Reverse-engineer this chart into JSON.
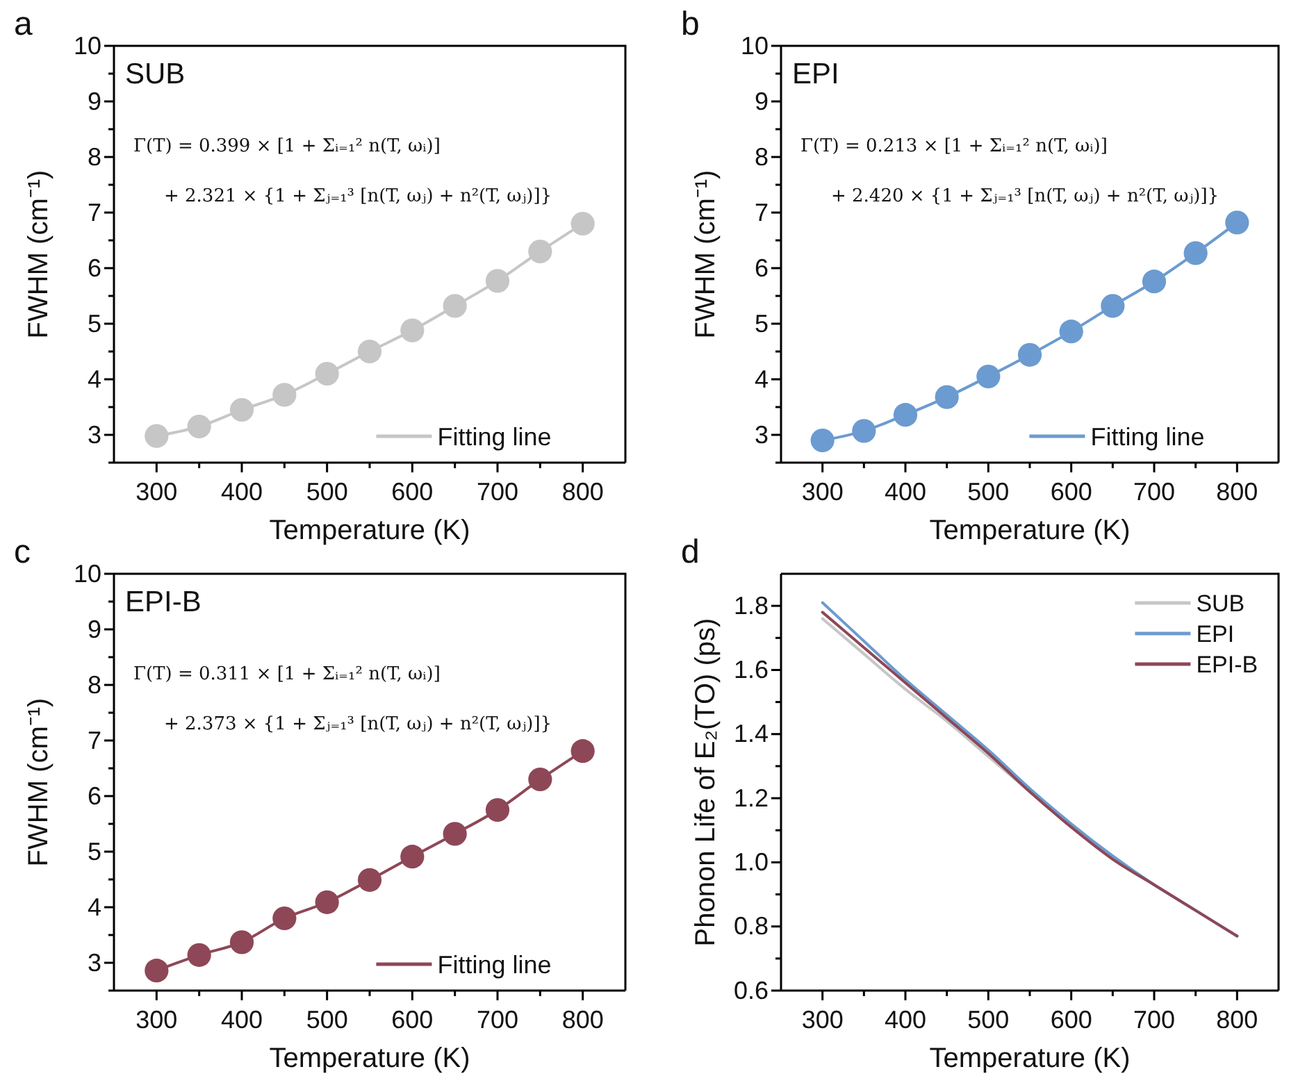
{
  "chart_data": [
    {
      "type": "line",
      "xlabel": "Temperature (K)",
      "ylabel": "FWHM (cm⁻¹)",
      "xlim": [
        250,
        850
      ],
      "ylim": [
        2.5,
        10
      ],
      "xticks": [
        300,
        {
          "value": 350,
          "label": null
        },
        400,
        {
          "value": 450,
          "label": null
        },
        500,
        {
          "value": 550,
          "label": null
        },
        600,
        {
          "value": 650,
          "label": null
        },
        700,
        {
          "value": 750,
          "label": null
        },
        800
      ],
      "yticks": [
        {
          "value": 2.5,
          "label": null
        },
        3,
        {
          "value": 3.5,
          "label": null
        },
        4,
        {
          "value": 4.5,
          "label": null
        },
        5,
        {
          "value": 5.5,
          "label": null
        },
        6,
        {
          "value": 6.5,
          "label": null
        },
        7,
        {
          "value": 7.5,
          "label": null
        },
        8,
        {
          "value": 8.5,
          "label": null
        },
        9,
        {
          "value": 9.5,
          "label": null
        },
        10
      ],
      "x": [
        300,
        350,
        400,
        450,
        500,
        550,
        600,
        650,
        700,
        750,
        800
      ],
      "series": [
        {
          "type": "scatter",
          "color": "#c6c6c6",
          "marker": "circle",
          "values": [
            2.98,
            3.15,
            3.45,
            3.72,
            4.1,
            4.5,
            4.88,
            5.32,
            5.77,
            6.3,
            6.8
          ]
        },
        {
          "type": "line",
          "name": "Fitting line",
          "color": "#c6c6c6",
          "line_style": "solid",
          "values": [
            2.98,
            3.15,
            3.45,
            3.72,
            4.1,
            4.5,
            4.88,
            5.32,
            5.77,
            6.3,
            6.8
          ]
        }
      ],
      "legend": "bottom right",
      "grid": false,
      "annotations": [
        "a",
        "SUB",
        "Γ(T) = 0.399 × [1 + Σᵢ₌₁² n(T, ωᵢ)]",
        "+ 2.321 × {1 + Σⱼ₌₁³ [n(T, ωⱼ) + n²(T, ωⱼ)]}"
      ]
    },
    {
      "type": "line",
      "xlabel": "Temperature (K)",
      "ylabel": "FWHM (cm⁻¹)",
      "xlim": [
        250,
        850
      ],
      "ylim": [
        2.5,
        10
      ],
      "xticks": [
        300,
        {
          "value": 350,
          "label": null
        },
        400,
        {
          "value": 450,
          "label": null
        },
        500,
        {
          "value": 550,
          "label": null
        },
        600,
        {
          "value": 650,
          "label": null
        },
        700,
        {
          "value": 750,
          "label": null
        },
        800
      ],
      "yticks": [
        {
          "value": 2.5,
          "label": null
        },
        3,
        {
          "value": 3.5,
          "label": null
        },
        4,
        {
          "value": 4.5,
          "label": null
        },
        5,
        {
          "value": 5.5,
          "label": null
        },
        6,
        {
          "value": 6.5,
          "label": null
        },
        7,
        {
          "value": 7.5,
          "label": null
        },
        8,
        {
          "value": 8.5,
          "label": null
        },
        9,
        {
          "value": 9.5,
          "label": null
        },
        10
      ],
      "x": [
        300,
        350,
        400,
        450,
        500,
        550,
        600,
        650,
        700,
        750,
        800
      ],
      "series": [
        {
          "type": "scatter",
          "color": "#6b9bd0",
          "marker": "circle",
          "values": [
            2.9,
            3.07,
            3.36,
            3.68,
            4.05,
            4.44,
            4.86,
            5.32,
            5.76,
            6.27,
            6.82
          ]
        },
        {
          "type": "line",
          "name": "Fitting line",
          "color": "#6b9bd0",
          "line_style": "solid",
          "values": [
            2.9,
            3.07,
            3.36,
            3.68,
            4.05,
            4.44,
            4.86,
            5.32,
            5.76,
            6.27,
            6.82
          ]
        }
      ],
      "legend": "bottom right",
      "grid": false,
      "annotations": [
        "b",
        "EPI",
        "Γ(T) = 0.213 × [1 + Σᵢ₌₁² n(T, ωᵢ)]",
        "+ 2.420 × {1 + Σⱼ₌₁³ [n(T, ωⱼ) + n²(T, ωⱼ)]}"
      ]
    },
    {
      "type": "line",
      "xlabel": "Temperature (K)",
      "ylabel": "FWHM (cm⁻¹)",
      "xlim": [
        250,
        850
      ],
      "ylim": [
        2.5,
        10
      ],
      "xticks": [
        300,
        {
          "value": 350,
          "label": null
        },
        400,
        {
          "value": 450,
          "label": null
        },
        500,
        {
          "value": 550,
          "label": null
        },
        600,
        {
          "value": 650,
          "label": null
        },
        700,
        {
          "value": 750,
          "label": null
        },
        800
      ],
      "yticks": [
        {
          "value": 2.5,
          "label": null
        },
        3,
        {
          "value": 3.5,
          "label": null
        },
        4,
        {
          "value": 4.5,
          "label": null
        },
        5,
        {
          "value": 5.5,
          "label": null
        },
        6,
        {
          "value": 6.5,
          "label": null
        },
        7,
        {
          "value": 7.5,
          "label": null
        },
        8,
        {
          "value": 8.5,
          "label": null
        },
        9,
        {
          "value": 9.5,
          "label": null
        },
        10
      ],
      "x": [
        300,
        350,
        400,
        450,
        500,
        550,
        600,
        650,
        700,
        750,
        800
      ],
      "series": [
        {
          "type": "scatter",
          "color": "#8e4757",
          "marker": "circle",
          "values": [
            2.86,
            3.14,
            3.37,
            3.8,
            4.09,
            4.49,
            4.91,
            5.32,
            5.75,
            6.3,
            6.81
          ]
        },
        {
          "type": "line",
          "name": "Fitting line",
          "color": "#8e4757",
          "line_style": "solid",
          "values": [
            2.86,
            3.14,
            3.37,
            3.8,
            4.09,
            4.49,
            4.91,
            5.32,
            5.75,
            6.3,
            6.81
          ]
        }
      ],
      "legend": "bottom right",
      "grid": false,
      "annotations": [
        "c",
        "EPI-B",
        "Γ(T) = 0.311 × [1 + Σᵢ₌₁² n(T, ωᵢ)]",
        "+ 2.373 × {1 + Σⱼ₌₁³ [n(T, ωⱼ) + n²(T, ωⱼ)]}"
      ]
    },
    {
      "type": "line",
      "xlabel": "Temperature (K)",
      "ylabel": "Phonon Life of E₂(TO) (ps)",
      "xlim": [
        250,
        850
      ],
      "ylim": [
        0.6,
        1.9
      ],
      "xticks": [
        300,
        {
          "value": 350,
          "label": null
        },
        400,
        {
          "value": 450,
          "label": null
        },
        500,
        {
          "value": 550,
          "label": null
        },
        600,
        {
          "value": 650,
          "label": null
        },
        700,
        {
          "value": 750,
          "label": null
        },
        800
      ],
      "yticks": [
        0.6,
        {
          "value": 0.7,
          "label": null
        },
        0.8,
        {
          "value": 0.9,
          "label": null
        },
        {
          "value": 1,
          "label": "1.0"
        },
        {
          "value": 1.1,
          "label": null
        },
        1.2,
        {
          "value": 1.3,
          "label": null
        },
        1.4,
        {
          "value": 1.5,
          "label": null
        },
        1.6,
        {
          "value": 1.7,
          "label": null
        },
        1.8
      ],
      "x": [
        300,
        350,
        400,
        450,
        500,
        550,
        600,
        650,
        700,
        750,
        800
      ],
      "series": [
        {
          "type": "line",
          "name": "SUB",
          "color": "#c6c6c6",
          "values": [
            1.76,
            1.65,
            1.54,
            1.44,
            1.33,
            1.22,
            1.11,
            1.01,
            0.93,
            0.85,
            0.77
          ]
        },
        {
          "type": "line",
          "name": "EPI",
          "color": "#6b9bd0",
          "values": [
            1.81,
            1.69,
            1.57,
            1.46,
            1.35,
            1.23,
            1.12,
            1.02,
            0.93,
            0.85,
            0.77
          ]
        },
        {
          "type": "line",
          "name": "EPI-B",
          "color": "#8e4757",
          "values": [
            1.78,
            1.67,
            1.56,
            1.45,
            1.34,
            1.22,
            1.11,
            1.01,
            0.93,
            0.85,
            0.77
          ]
        }
      ],
      "legend": "top right",
      "grid": false,
      "annotations": [
        "d"
      ]
    }
  ]
}
